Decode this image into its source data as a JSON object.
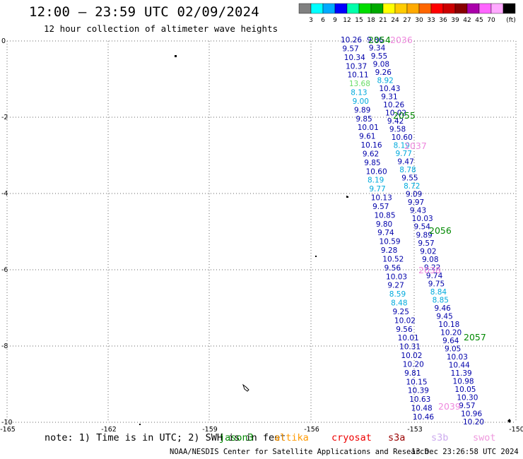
{
  "header": {
    "title": "12:00 – 23:59 UTC 02/09/2024",
    "subtitle": "12 hour collection of altimeter wave heights"
  },
  "colorbar": {
    "unit": "(ft)",
    "colors": [
      "#808080",
      "#00ffff",
      "#00aaff",
      "#0000ff",
      "#00ffaa",
      "#00dd00",
      "#00aa00",
      "#ffff00",
      "#ffcc00",
      "#ffaa00",
      "#ff6600",
      "#ff0000",
      "#cc0000",
      "#880000",
      "#aa00aa",
      "#ff66ff",
      "#ffaaff",
      "#000000"
    ],
    "labels": [
      "3",
      "6",
      "9",
      "12",
      "15",
      "18",
      "21",
      "24",
      "27",
      "30",
      "33",
      "36",
      "39",
      "42",
      "45",
      "70"
    ]
  },
  "axes": {
    "x_ticks": [
      "-165",
      "-162",
      "-159",
      "-156",
      "-153",
      "-150"
    ],
    "y_ticks": [
      "0",
      "-2",
      "-4",
      "-6",
      "-8",
      "-10"
    ]
  },
  "times": [
    {
      "label": "2054",
      "color": "#008800"
    },
    {
      "label": "2036",
      "color": "#ee88dd"
    },
    {
      "label": "2055",
      "color": "#008800"
    },
    {
      "label": "2037",
      "color": "#ee88dd"
    },
    {
      "label": "2056",
      "color": "#008800"
    },
    {
      "label": "2038",
      "color": "#ee88dd"
    },
    {
      "label": "2057",
      "color": "#008800"
    },
    {
      "label": "2039",
      "color": "#ee88dd"
    }
  ],
  "track_a": [
    {
      "v": "10.26",
      "c": "#0000aa"
    },
    {
      "v": "9.57",
      "c": "#0000aa"
    },
    {
      "v": "10.34",
      "c": "#0000aa"
    },
    {
      "v": "10.37",
      "c": "#0000aa"
    },
    {
      "v": "10.11",
      "c": "#0000aa"
    },
    {
      "v": "13.68",
      "c": "#66dd66"
    },
    {
      "v": "8.13",
      "c": "#00aadd"
    },
    {
      "v": "9.00",
      "c": "#00aadd"
    },
    {
      "v": "9.89",
      "c": "#0000aa"
    },
    {
      "v": "9.85",
      "c": "#0000aa"
    },
    {
      "v": "10.01",
      "c": "#0000aa"
    },
    {
      "v": "9.61",
      "c": "#0000aa"
    },
    {
      "v": "10.16",
      "c": "#0000aa"
    },
    {
      "v": "9.62",
      "c": "#0000aa"
    },
    {
      "v": "9.85",
      "c": "#0000aa"
    },
    {
      "v": "10.60",
      "c": "#0000aa"
    },
    {
      "v": "8.19",
      "c": "#00aadd"
    },
    {
      "v": "9.77",
      "c": "#00aadd"
    },
    {
      "v": "10.13",
      "c": "#0000aa"
    },
    {
      "v": "9.57",
      "c": "#0000aa"
    },
    {
      "v": "10.85",
      "c": "#0000aa"
    },
    {
      "v": "9.80",
      "c": "#0000aa"
    },
    {
      "v": "9.74",
      "c": "#0000aa"
    },
    {
      "v": "10.59",
      "c": "#0000aa"
    },
    {
      "v": "9.28",
      "c": "#0000aa"
    },
    {
      "v": "10.52",
      "c": "#0000aa"
    },
    {
      "v": "9.56",
      "c": "#0000aa"
    },
    {
      "v": "10.03",
      "c": "#0000aa"
    },
    {
      "v": "9.27",
      "c": "#0000aa"
    },
    {
      "v": "8.59",
      "c": "#00aadd"
    },
    {
      "v": "8.48",
      "c": "#00aadd"
    },
    {
      "v": "9.25",
      "c": "#0000aa"
    },
    {
      "v": "10.02",
      "c": "#0000aa"
    },
    {
      "v": "9.56",
      "c": "#0000aa"
    },
    {
      "v": "10.01",
      "c": "#0000aa"
    },
    {
      "v": "10.31",
      "c": "#0000aa"
    },
    {
      "v": "10.02",
      "c": "#0000aa"
    },
    {
      "v": "10.20",
      "c": "#0000aa"
    },
    {
      "v": "9.81",
      "c": "#0000aa"
    },
    {
      "v": "10.15",
      "c": "#0000aa"
    },
    {
      "v": "10.39",
      "c": "#0000aa"
    },
    {
      "v": "10.63",
      "c": "#0000aa"
    },
    {
      "v": "10.48",
      "c": "#0000aa"
    },
    {
      "v": "10.46",
      "c": "#0000aa"
    }
  ],
  "track_b": [
    {
      "v": "9.86",
      "c": "#0000aa"
    },
    {
      "v": "9.34",
      "c": "#0000aa"
    },
    {
      "v": "9.55",
      "c": "#0000aa"
    },
    {
      "v": "9.08",
      "c": "#0000aa"
    },
    {
      "v": "9.26",
      "c": "#0000aa"
    },
    {
      "v": "8.92",
      "c": "#00aadd"
    },
    {
      "v": "10.43",
      "c": "#0000aa"
    },
    {
      "v": "9.31",
      "c": "#0000aa"
    },
    {
      "v": "10.26",
      "c": "#0000aa"
    },
    {
      "v": "10.02",
      "c": "#0000aa"
    },
    {
      "v": "9.42",
      "c": "#0000aa"
    },
    {
      "v": "9.58",
      "c": "#0000aa"
    },
    {
      "v": "10.60",
      "c": "#0000aa"
    },
    {
      "v": "8.19",
      "c": "#00aadd"
    },
    {
      "v": "9.77",
      "c": "#00aadd"
    },
    {
      "v": "9.47",
      "c": "#0000aa"
    },
    {
      "v": "8.78",
      "c": "#00aadd"
    },
    {
      "v": "9.55",
      "c": "#0000aa"
    },
    {
      "v": "8.72",
      "c": "#00aadd"
    },
    {
      "v": "9.09",
      "c": "#0000aa"
    },
    {
      "v": "9.97",
      "c": "#0000aa"
    },
    {
      "v": "9.43",
      "c": "#0000aa"
    },
    {
      "v": "10.03",
      "c": "#0000aa"
    },
    {
      "v": "9.54",
      "c": "#0000aa"
    },
    {
      "v": "9.89",
      "c": "#0000aa"
    },
    {
      "v": "9.57",
      "c": "#0000aa"
    },
    {
      "v": "9.02",
      "c": "#0000aa"
    },
    {
      "v": "9.08",
      "c": "#0000aa"
    },
    {
      "v": "9.22",
      "c": "#0000aa"
    },
    {
      "v": "9.74",
      "c": "#0000aa"
    },
    {
      "v": "9.75",
      "c": "#0000aa"
    },
    {
      "v": "8.84",
      "c": "#00aadd"
    },
    {
      "v": "8.85",
      "c": "#00aadd"
    },
    {
      "v": "9.46",
      "c": "#0000aa"
    },
    {
      "v": "9.45",
      "c": "#0000aa"
    },
    {
      "v": "10.18",
      "c": "#0000aa"
    },
    {
      "v": "10.20",
      "c": "#0000aa"
    },
    {
      "v": "9.64",
      "c": "#0000aa"
    },
    {
      "v": "9.05",
      "c": "#0000aa"
    },
    {
      "v": "10.03",
      "c": "#0000aa"
    },
    {
      "v": "10.44",
      "c": "#0000aa"
    },
    {
      "v": "11.39",
      "c": "#0000aa"
    },
    {
      "v": "10.98",
      "c": "#0000aa"
    },
    {
      "v": "10.05",
      "c": "#0000aa"
    },
    {
      "v": "10.30",
      "c": "#0000aa"
    },
    {
      "v": "9.57",
      "c": "#0000aa"
    },
    {
      "v": "10.96",
      "c": "#0000aa"
    },
    {
      "v": "10.20",
      "c": "#0000aa"
    }
  ],
  "legend": {
    "note": "note: 1) Time is in UTC; 2) SWH is in feet",
    "satellites": [
      {
        "name": "jason3",
        "color": "#008800"
      },
      {
        "name": "altika",
        "color": "#ff9900"
      },
      {
        "name": "cryosat",
        "color": "#ee0000"
      },
      {
        "name": "s3a",
        "color": "#990000"
      },
      {
        "name": "s3b",
        "color": "#ccaaee"
      },
      {
        "name": "swot",
        "color": "#ee99dd"
      }
    ]
  },
  "footer": {
    "credit": "NOAA/NESDIS Center for Satellite Applications and Research",
    "timestamp": "13 Dec 23:26:58 UTC 2024"
  }
}
